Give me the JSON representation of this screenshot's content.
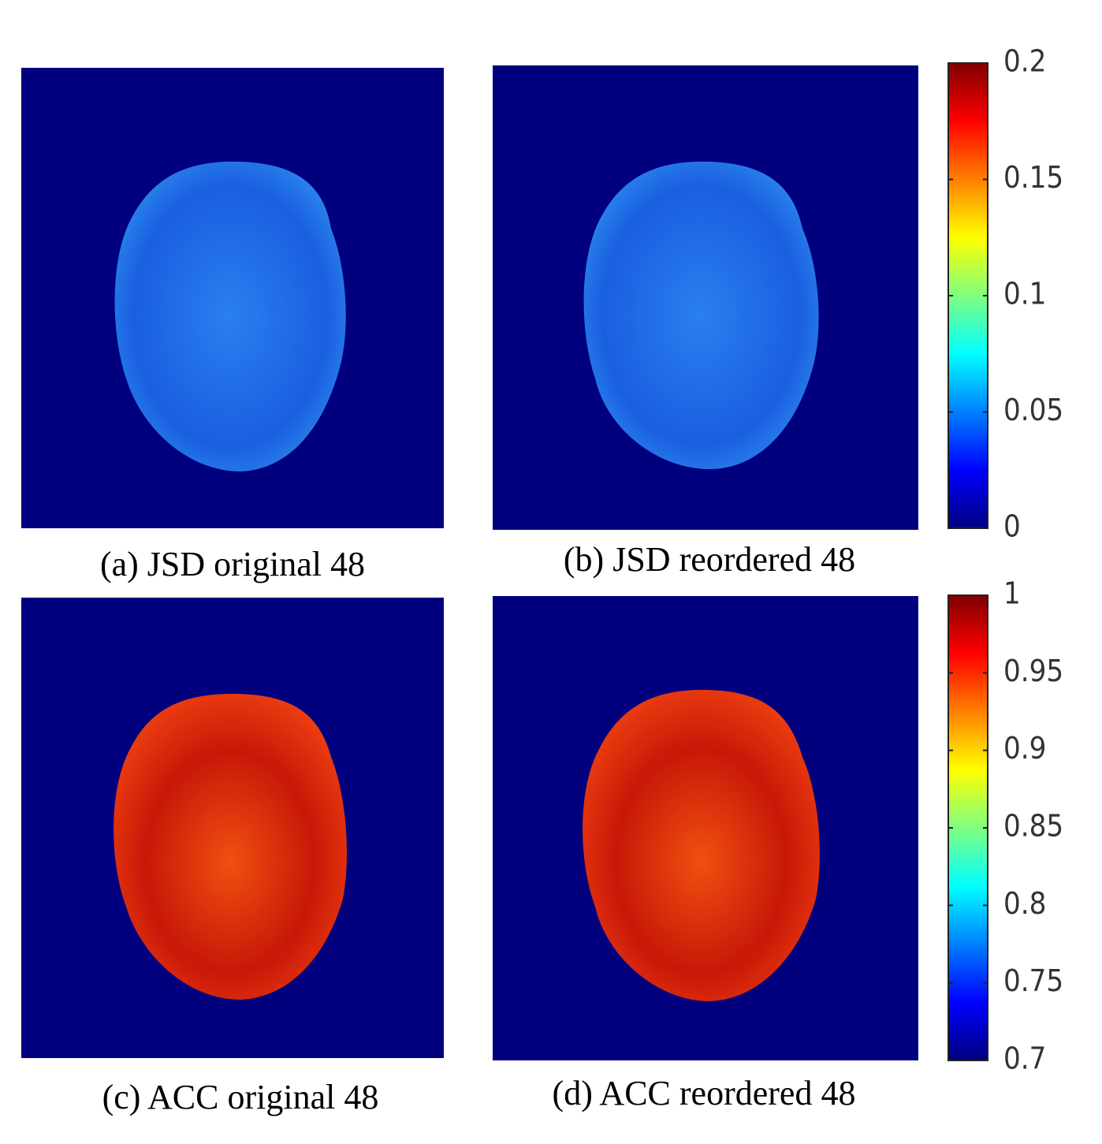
{
  "panels": [
    {
      "caption": "(a) JSD original 48"
    },
    {
      "caption": "(b) JSD reordered 48"
    },
    {
      "caption": "(c) ACC original 48"
    },
    {
      "caption": "(d) ACC reordered 48"
    }
  ],
  "colorbars": [
    {
      "lim": [
        0,
        0.2
      ],
      "ticks": [
        0,
        0.05,
        0.1,
        0.15,
        0.2
      ]
    },
    {
      "lim": [
        0.7,
        1
      ],
      "ticks": [
        0.7,
        0.75,
        0.8,
        0.85,
        0.9,
        0.95,
        1
      ]
    }
  ]
}
